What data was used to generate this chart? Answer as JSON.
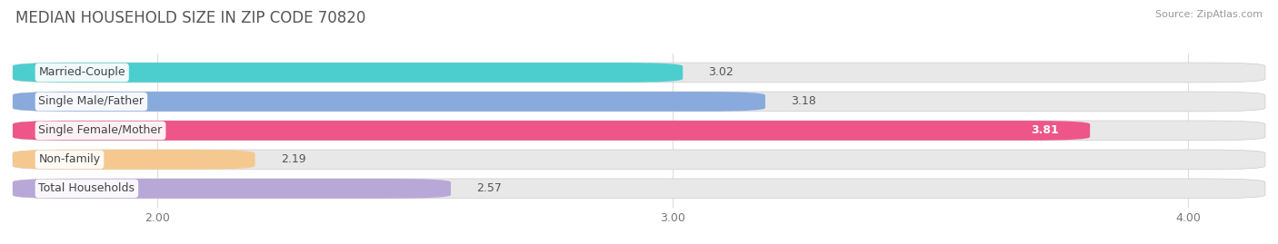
{
  "title": "MEDIAN HOUSEHOLD SIZE IN ZIP CODE 70820",
  "source": "Source: ZipAtlas.com",
  "categories": [
    "Married-Couple",
    "Single Male/Father",
    "Single Female/Mother",
    "Non-family",
    "Total Households"
  ],
  "values": [
    3.02,
    3.18,
    3.81,
    2.19,
    2.57
  ],
  "bar_colors": [
    "#4DCECE",
    "#88AADD",
    "#EE5588",
    "#F5C890",
    "#B8A8D8"
  ],
  "value_inside": [
    false,
    false,
    true,
    false,
    false
  ],
  "xlim_left": 1.72,
  "xlim_right": 4.15,
  "xticks": [
    2.0,
    3.0,
    4.0
  ],
  "xtick_labels": [
    "2.00",
    "3.00",
    "4.00"
  ],
  "value_label_fontsize": 9,
  "category_label_fontsize": 9,
  "title_fontsize": 12,
  "background_color": "#ffffff",
  "bar_bg_color": "#e8e8e8",
  "bar_height": 0.68,
  "bar_gap": 1.0
}
